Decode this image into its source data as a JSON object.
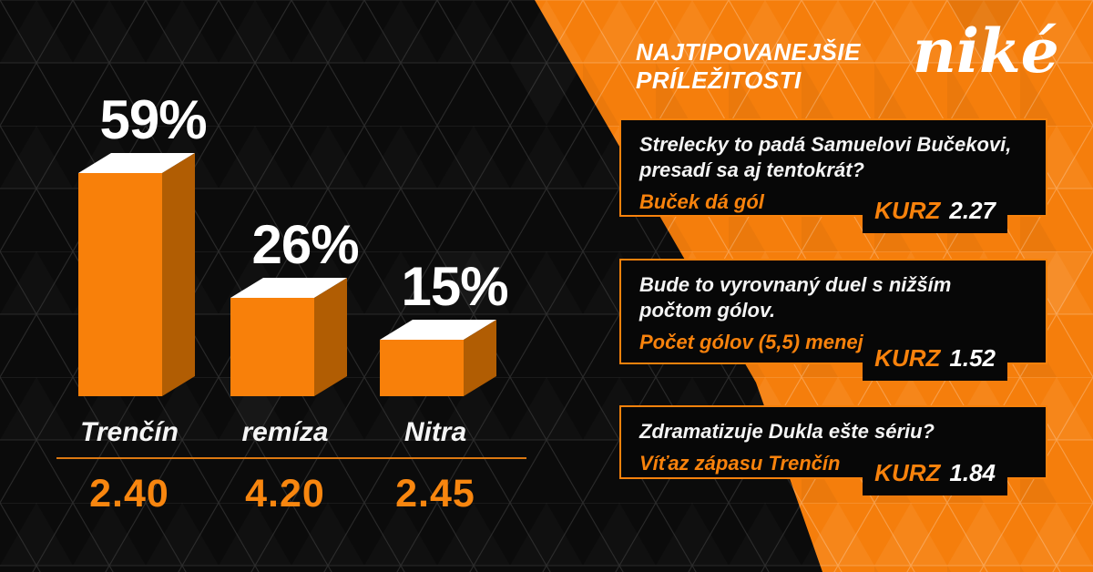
{
  "brand": {
    "logo_text": "niké",
    "orange": "#F57E0C",
    "accent_text_orange": "#F8820C",
    "dark": "#0B0B0B"
  },
  "header": {
    "title_line1": "NAJTIPOVANEJŠIE",
    "title_line2": "PRÍLEŽITOSTI"
  },
  "chart_data": {
    "type": "bar",
    "title": "",
    "categories": [
      "Trenčín",
      "remíza",
      "Nitra"
    ],
    "values": [
      59,
      26,
      15
    ],
    "data_labels": [
      "59%",
      "26%",
      "15%"
    ],
    "odds": [
      "2.40",
      "4.20",
      "2.45"
    ],
    "unit": "percent of bets",
    "ylim": [
      0,
      100
    ],
    "grid": false,
    "legend": "none",
    "style": "3d-bars",
    "colors": {
      "front": "#F8800A",
      "side": "#B15D03",
      "top": "#FFFFFF"
    }
  },
  "cards": [
    {
      "question_line1": "Strelecky to padá Samuelovi Bučekovi,",
      "question_line2": "presadí sa aj tentokrát?",
      "pick": "Buček dá gól",
      "kurz_label": "KURZ",
      "kurz_value": "2.27"
    },
    {
      "question_line1": "Bude to vyrovnaný duel s nižším",
      "question_line2": "počtom gólov.",
      "pick": "Počet gólov (5,5) menej",
      "kurz_label": "KURZ",
      "kurz_value": "1.52"
    },
    {
      "question_line1": "Zdramatizuje Dukla ešte sériu?",
      "question_line2": "",
      "pick": "Víťaz zápasu Trenčín",
      "kurz_label": "KURZ",
      "kurz_value": "1.84"
    }
  ]
}
